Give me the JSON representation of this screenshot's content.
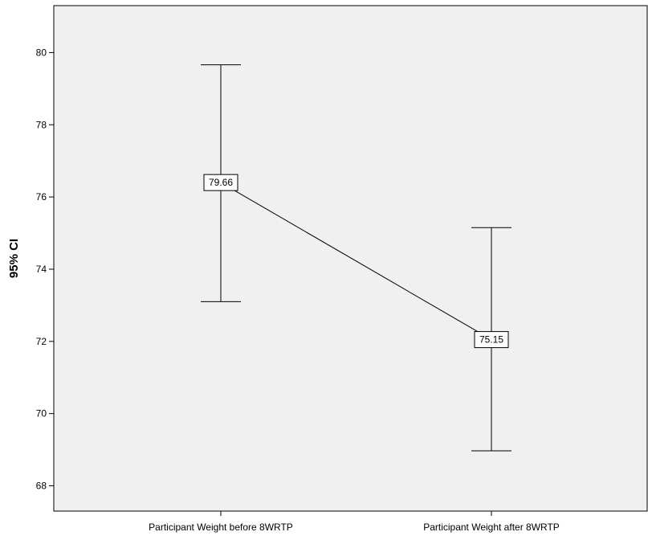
{
  "chart_data": {
    "type": "errorbar",
    "ylabel": "95% CI",
    "xlabel": "",
    "ylim": [
      67.3,
      81.3
    ],
    "yticks": [
      68,
      70,
      72,
      74,
      76,
      78,
      80
    ],
    "categories": [
      "Participant Weight before 8WRTP",
      "Participant Weight after 8WRTP"
    ],
    "points": [
      {
        "category": "Participant Weight before 8WRTP",
        "mean": 76.4,
        "lower": 73.1,
        "upper": 79.66,
        "label": "79.66"
      },
      {
        "category": "Participant Weight after 8WRTP",
        "mean": 72.05,
        "lower": 68.97,
        "upper": 75.15,
        "label": "75.15"
      }
    ],
    "grid": false,
    "colors": {
      "plot_bg": "#f0f0f0",
      "line": "#000000",
      "label_bg": "#ffffff"
    }
  }
}
